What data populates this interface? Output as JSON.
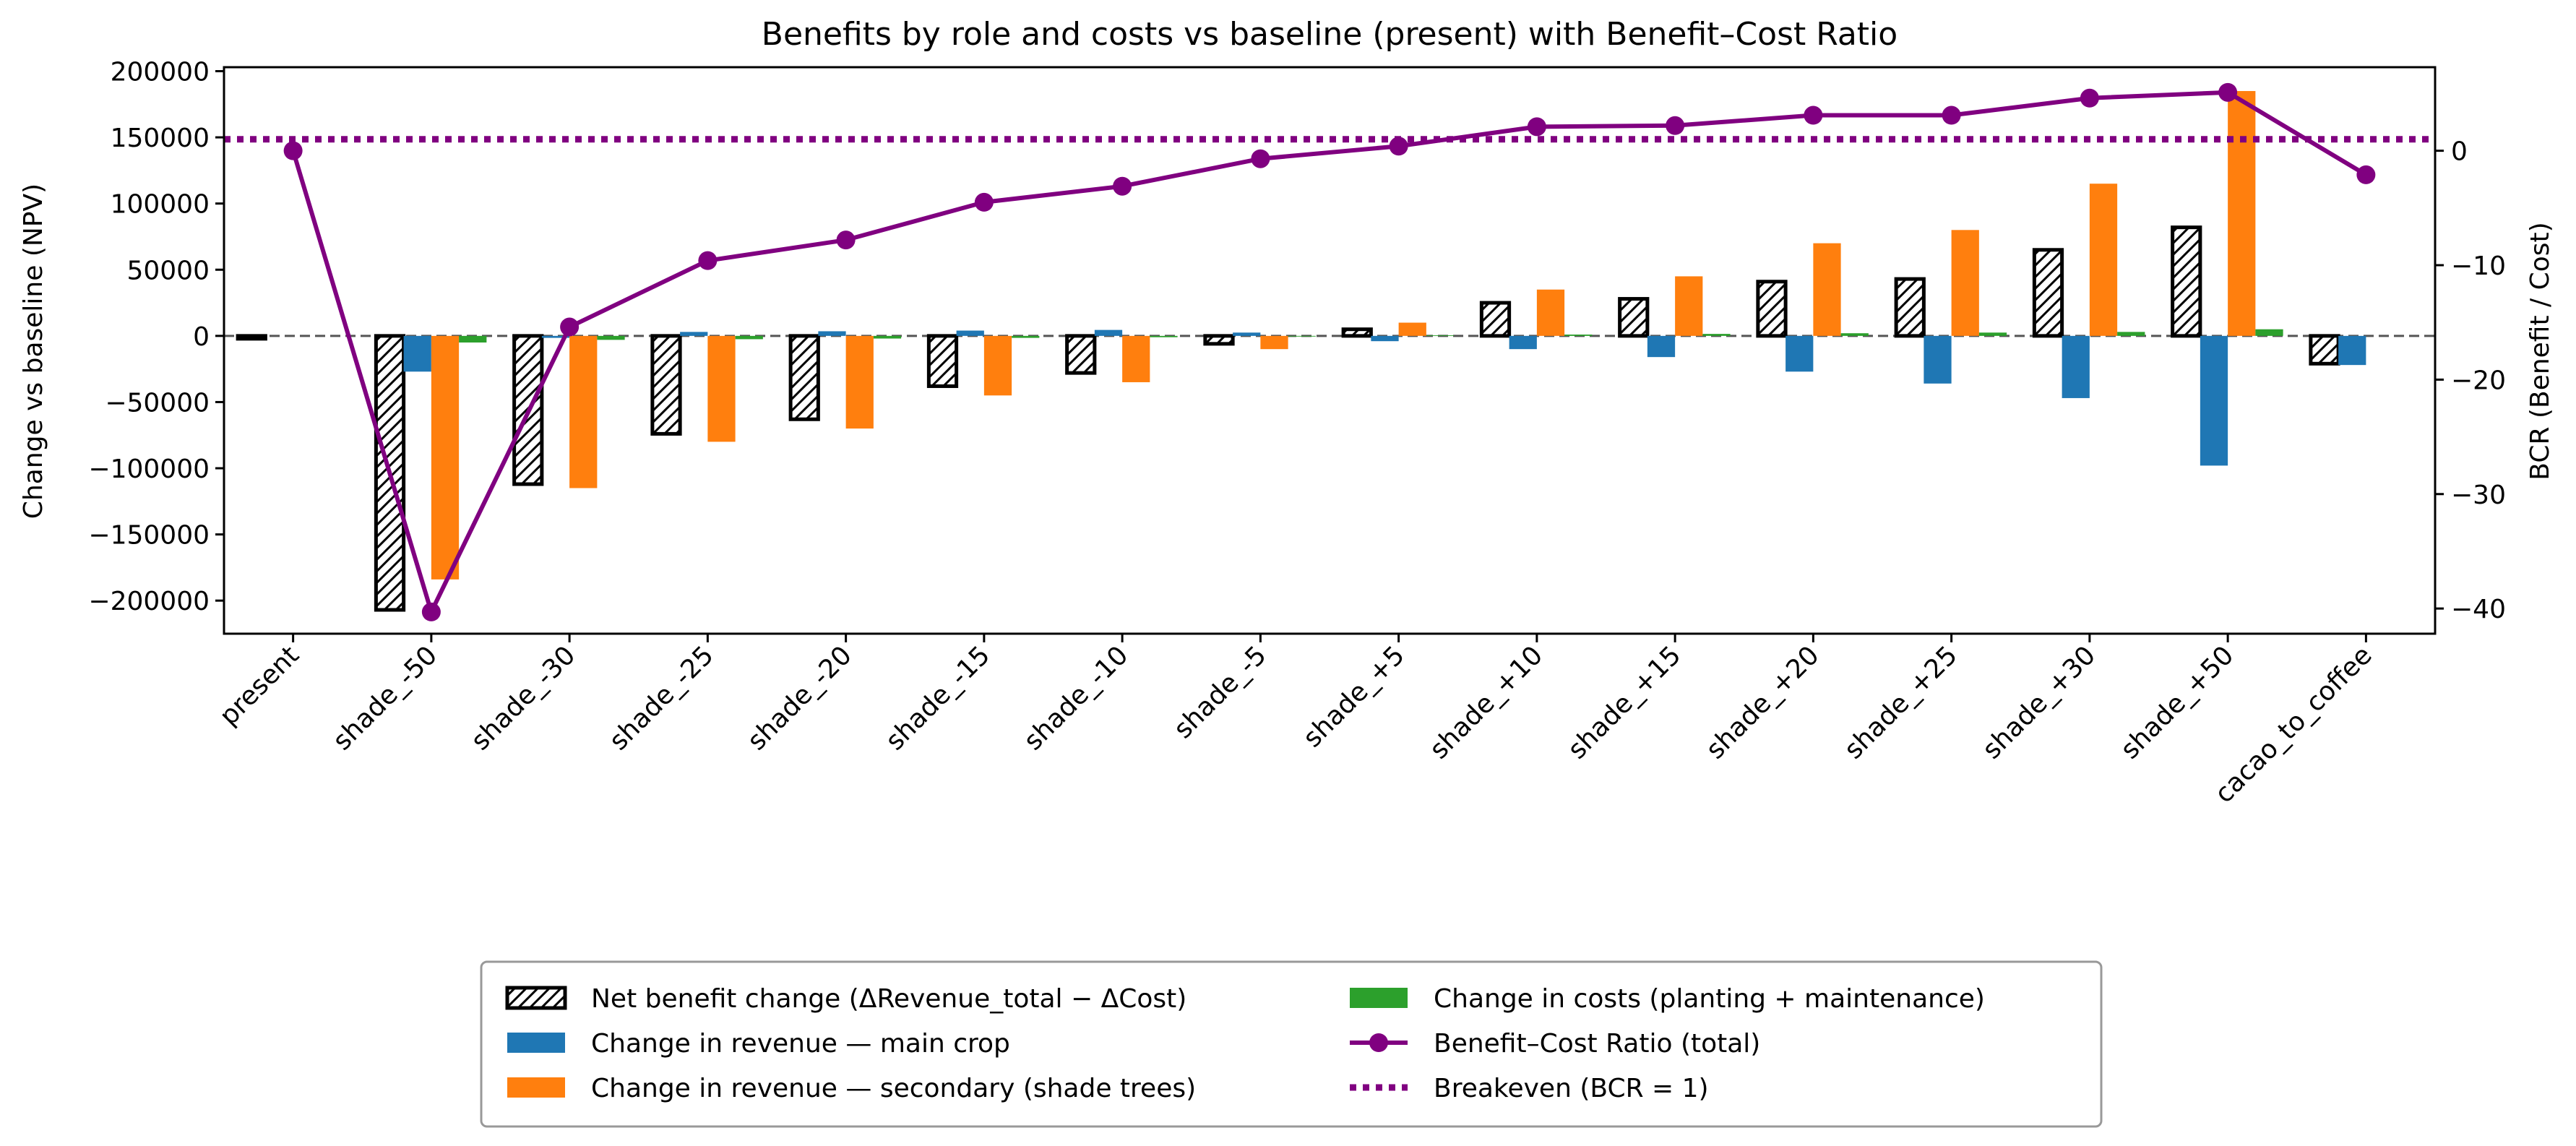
{
  "chart_data": {
    "type": "bar",
    "title": "Benefits by role and costs vs baseline (present) with Benefit–Cost Ratio",
    "ylabel": "Change vs baseline (NPV)",
    "y2label": "BCR (Benefit / Cost)",
    "categories": [
      "present",
      "shade_-50",
      "shade_-30",
      "shade_-25",
      "shade_-20",
      "shade_-15",
      "shade_-10",
      "shade_-5",
      "shade_+5",
      "shade_+10",
      "shade_+15",
      "shade_+20",
      "shade_+25",
      "shade_+30",
      "shade_+50",
      "cacao_to_coffee"
    ],
    "ylim": [
      -225000,
      203000
    ],
    "y2lim": [
      -42.2,
      7.3
    ],
    "yticks": [
      -200000,
      -150000,
      -100000,
      -50000,
      0,
      50000,
      100000,
      150000,
      200000
    ],
    "y2ticks": [
      -40,
      -30,
      -20,
      -10,
      0
    ],
    "series": [
      {
        "name": "Net benefit change (ΔRevenue_total − ΔCost)",
        "kind": "bar-hatched",
        "color": "#ffffff",
        "values": [
          0,
          -207000,
          -112000,
          -74000,
          -63000,
          -38000,
          -28000,
          -6000,
          5000,
          25000,
          28000,
          41000,
          43000,
          65000,
          82000,
          -21000
        ]
      },
      {
        "name": "Change in revenue — main crop",
        "kind": "bar",
        "color": "#1f77b4",
        "values": [
          0,
          -27000,
          -1500,
          3000,
          3500,
          4000,
          4500,
          2500,
          -4000,
          -10000,
          -16000,
          -27000,
          -36000,
          -47000,
          -98000,
          -22000
        ]
      },
      {
        "name": "Change in revenue — secondary (shade trees)",
        "kind": "bar",
        "color": "#ff7f0e",
        "values": [
          0,
          -184000,
          -115000,
          -80000,
          -70000,
          -45000,
          -35000,
          -10000,
          10000,
          35000,
          45000,
          70000,
          80000,
          115000,
          185000,
          0
        ]
      },
      {
        "name": "Change in costs (planting + maintenance)",
        "kind": "bar",
        "color": "#2ca02c",
        "values": [
          0,
          -5000,
          -3000,
          -2500,
          -2000,
          -1500,
          -1000,
          -500,
          500,
          1000,
          1500,
          2000,
          2500,
          3000,
          5000,
          0
        ]
      },
      {
        "name": "Benefit–Cost Ratio (total)",
        "kind": "line",
        "axis": "right",
        "color": "#800080",
        "values": [
          0,
          -40.3,
          -15.4,
          -9.6,
          -7.8,
          -4.5,
          -3.1,
          -0.7,
          0.4,
          2.1,
          2.2,
          3.1,
          3.1,
          4.6,
          5.1,
          -2.1
        ]
      },
      {
        "name": "Breakeven (BCR = 1)",
        "kind": "hline",
        "axis": "right",
        "color": "#800080",
        "value": 1
      }
    ],
    "legend": {
      "position": "bottom-center",
      "columns": 2
    }
  }
}
